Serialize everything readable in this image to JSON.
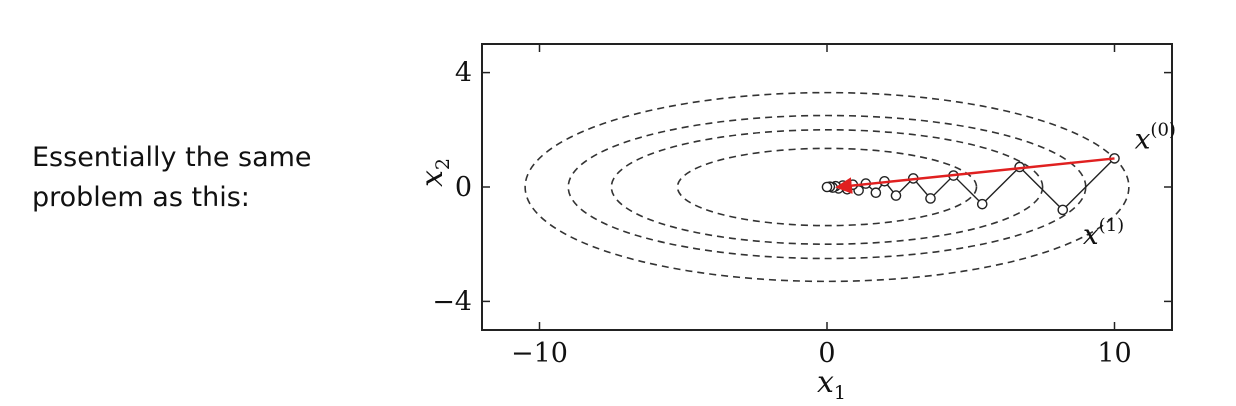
{
  "caption": {
    "line1": "Essentially the same",
    "line2": "problem as this:"
  },
  "chart_data": {
    "type": "line",
    "title": "",
    "xlabel": {
      "base": "x",
      "sub": "1"
    },
    "ylabel": {
      "base": "x",
      "sub": "2"
    },
    "xlim": [
      -12,
      12
    ],
    "ylim": [
      -5,
      5
    ],
    "xticks": [
      -10,
      0,
      10
    ],
    "xtick_labels": [
      "−10",
      "0",
      "10"
    ],
    "yticks": [
      4,
      0,
      -4
    ],
    "ytick_labels": [
      "4",
      "0",
      "−4"
    ],
    "grid": false,
    "contour_semi_axes": [
      [
        5.2,
        1.35
      ],
      [
        7.5,
        2.0
      ],
      [
        9.0,
        2.5
      ],
      [
        10.5,
        3.3
      ]
    ],
    "path": {
      "points": [
        [
          10.0,
          1.0
        ],
        [
          8.2,
          -0.8
        ],
        [
          6.7,
          0.7
        ],
        [
          5.4,
          -0.6
        ],
        [
          4.4,
          0.4
        ],
        [
          3.6,
          -0.4
        ],
        [
          3.0,
          0.3
        ],
        [
          2.4,
          -0.3
        ],
        [
          2.0,
          0.2
        ],
        [
          1.7,
          -0.2
        ],
        [
          1.35,
          0.12
        ],
        [
          1.1,
          -0.12
        ],
        [
          0.9,
          0.08
        ],
        [
          0.7,
          -0.08
        ],
        [
          0.55,
          0.05
        ],
        [
          0.4,
          -0.05
        ],
        [
          0.3,
          0.03
        ],
        [
          0.2,
          -0.02
        ],
        [
          0.1,
          0.01
        ],
        [
          0.0,
          0.0
        ]
      ]
    },
    "arrow": {
      "from": [
        10.0,
        1.0
      ],
      "to": [
        0.4,
        0.0
      ],
      "color": "#e02020"
    },
    "annotations": [
      {
        "base": "x",
        "sup": "(0)",
        "at": [
          10.7,
          1.35
        ]
      },
      {
        "base": "x",
        "sup": "(1)",
        "at": [
          8.9,
          -2.0
        ]
      }
    ]
  }
}
